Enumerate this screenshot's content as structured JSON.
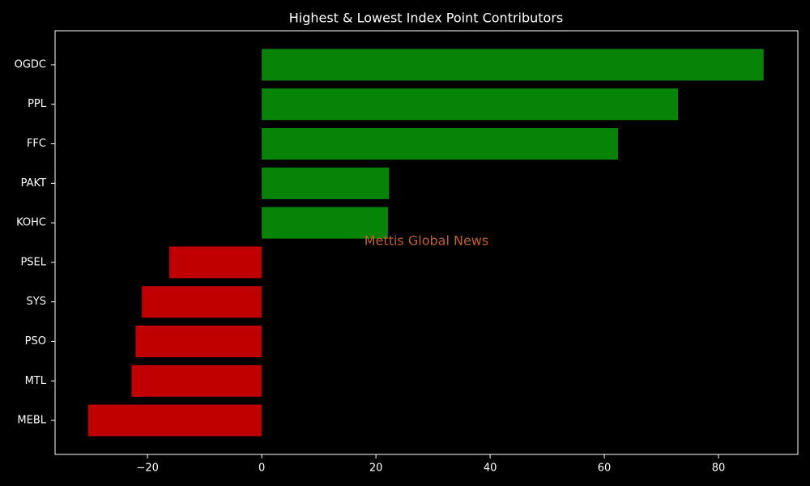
{
  "chart_data": {
    "type": "barh",
    "title": "Highest & Lowest Index Point Contributors",
    "categories": [
      "OGDC",
      "PPL",
      "FFC",
      "PAKT",
      "KOHC",
      "PSEL",
      "SYS",
      "PSO",
      "MTL",
      "MEBL"
    ],
    "values": [
      87.9,
      72.9,
      62.4,
      22.3,
      22.1,
      -16.2,
      -21.0,
      -22.1,
      -22.8,
      -30.4
    ],
    "colors": [
      "#078407",
      "#078407",
      "#078407",
      "#078407",
      "#078407",
      "#c00000",
      "#c00000",
      "#c00000",
      "#c00000",
      "#c00000"
    ],
    "xlim": [
      -36.2,
      93.9
    ],
    "xticks": [
      {
        "value": -20,
        "label": "−20"
      },
      0,
      20,
      40,
      60,
      80
    ],
    "annotation": "Mettis Global News",
    "grid": false
  }
}
